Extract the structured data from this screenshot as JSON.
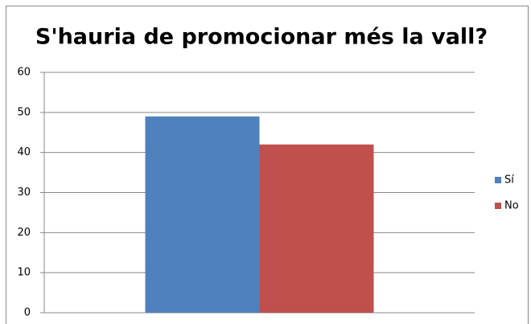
{
  "chart_data": {
    "type": "bar",
    "title": "S'hauria de promocionar més la vall?",
    "categories": [
      null
    ],
    "series": [
      {
        "name": "Sí",
        "color": "#4f81bd",
        "values": [
          49
        ]
      },
      {
        "name": "No",
        "color": "#c0504d",
        "values": [
          42
        ]
      }
    ],
    "ylim": [
      0,
      60
    ],
    "yticks": [
      0,
      10,
      20,
      30,
      40,
      50,
      60
    ],
    "grid": true,
    "legend": "right"
  }
}
